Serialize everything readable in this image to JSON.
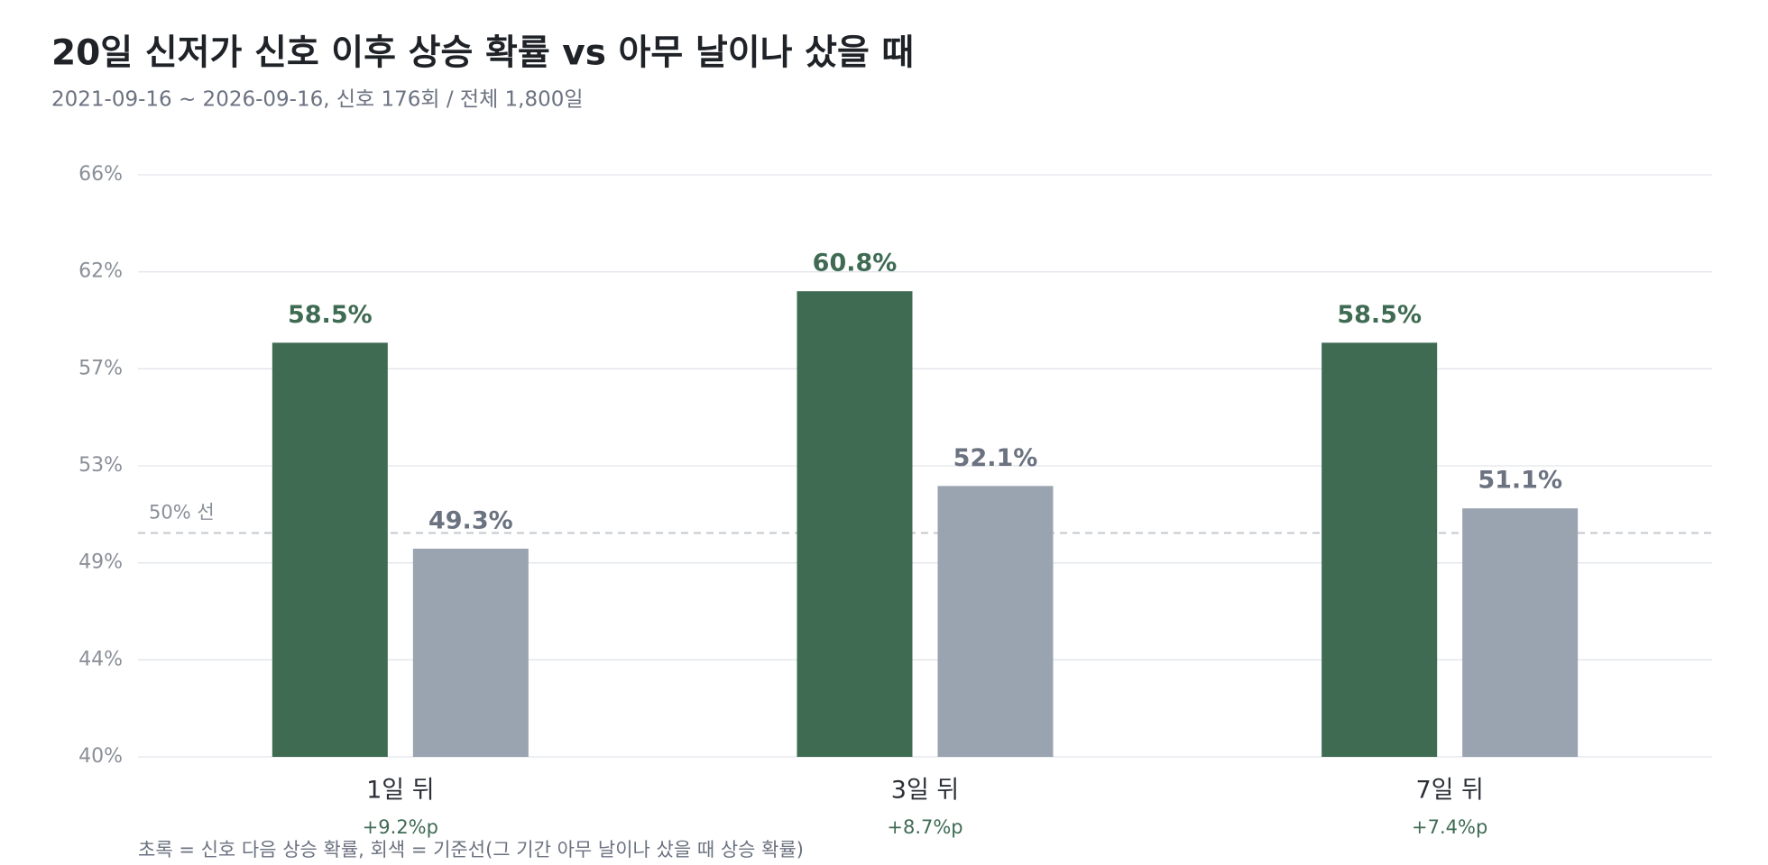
{
  "chart_data": {
    "type": "bar",
    "title": "20일 신저가 신호 이후 상승 확률 vs 아무 날이나 샀을 때",
    "subtitle": "2021-09-16 ~ 2026-09-16, 신호 176회 / 전체 1,800일",
    "categories": [
      "1일 뒤",
      "3일 뒤",
      "7일 뒤"
    ],
    "deltas": [
      "+9.2%p",
      "+8.7%p",
      "+7.4%p"
    ],
    "series": [
      {
        "color": "#3f6b53",
        "label_color": "#3f6b53",
        "values": [
          58.5,
          60.8,
          58.5
        ],
        "value_labels": [
          "58.5%",
          "60.8%",
          "58.5%"
        ]
      },
      {
        "color": "#9aa3b0",
        "label_color": "#6b7280",
        "values": [
          49.3,
          52.1,
          51.1
        ],
        "value_labels": [
          "49.3%",
          "52.1%",
          "51.1%"
        ]
      }
    ],
    "ylim": [
      40,
      66
    ],
    "yticks": [
      {
        "value": 40,
        "label": "40%"
      },
      {
        "value": 44.333333,
        "label": "44%"
      },
      {
        "value": 48.666667,
        "label": "49%"
      },
      {
        "value": 53,
        "label": "53%"
      },
      {
        "value": 57.333333,
        "label": "57%"
      },
      {
        "value": 61.666667,
        "label": "62%"
      },
      {
        "value": 66,
        "label": "66%"
      }
    ],
    "grid": true,
    "ref_line": {
      "value": 50,
      "label": "50% 선"
    },
    "note": "초록 = 신호 다음 상승 확률, 회색 = 기준선(그 기간 아무 날이나 샀을 때 상승 확률)"
  }
}
